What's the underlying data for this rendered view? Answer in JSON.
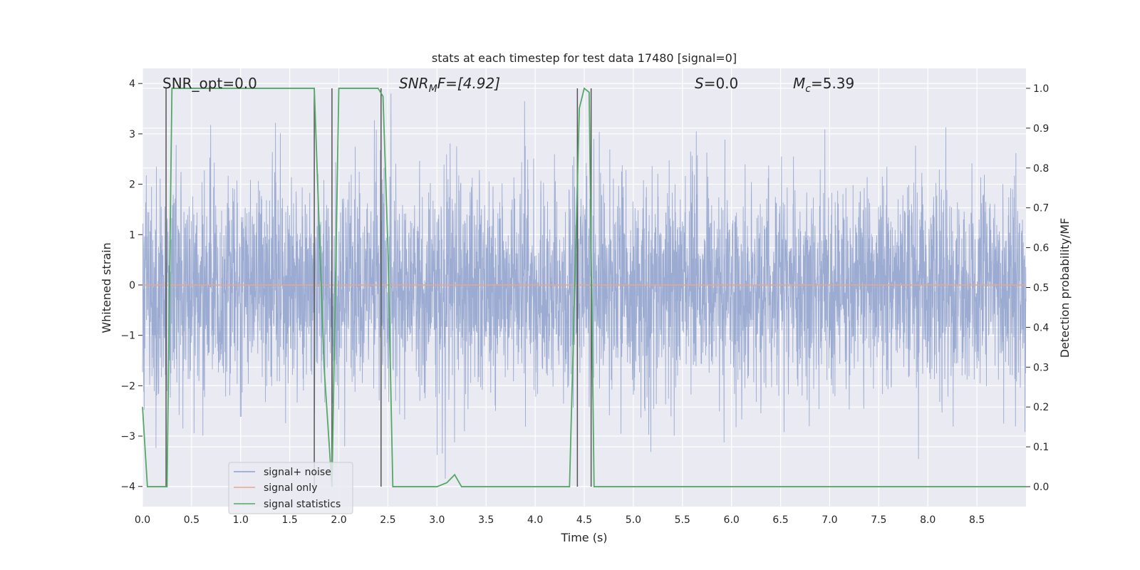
{
  "chart_data": {
    "type": "line",
    "title": "stats at each timestep for test data 17480 [signal=0]",
    "xlabel": "Time (s)",
    "ylabel": "Whitened strain",
    "ylabel_right": "Detection probability/MF",
    "xlim": [
      0.0,
      9.0
    ],
    "ylim": [
      -4.4,
      4.3
    ],
    "ylim_right": [
      -0.05,
      1.05
    ],
    "xticks": [
      "0.0",
      "0.5",
      "1.0",
      "1.5",
      "2.0",
      "2.5",
      "3.0",
      "3.5",
      "4.0",
      "4.5",
      "5.0",
      "5.5",
      "6.0",
      "6.5",
      "7.0",
      "7.5",
      "8.0",
      "8.5"
    ],
    "yticks_left": [
      "4",
      "3",
      "2",
      "1",
      "0",
      "−1",
      "−2",
      "−3",
      "−4"
    ],
    "yticks_right": [
      "1.0",
      "0.9",
      "0.8",
      "0.7",
      "0.6",
      "0.5",
      "0.4",
      "0.3",
      "0.2",
      "0.1",
      "0.0"
    ],
    "grid": true,
    "legend_position": "lower-left",
    "annotations": {
      "snr_opt": "SNR_opt=0.0",
      "snr_mf_prefix": "SNR",
      "snr_mf_sub": "M",
      "snr_mf_suffix": "F=[4.92]",
      "s_italic": "S",
      "s_value": "=0.0",
      "mc_italic": "M",
      "mc_sub": "c",
      "mc_value": "=5.39"
    },
    "noise_envelope": {
      "typical_max": 2.3,
      "typical_min": -2.3,
      "peak_max": 3.8,
      "peak_min": -4.0
    },
    "series": [
      {
        "name": "signal+ noise",
        "color": "#8da0cb",
        "axis": "left",
        "description_values": "dense noise, approx. within [-4.0, 3.8]"
      },
      {
        "name": "signal only",
        "color": "#e5a88c",
        "axis": "left",
        "x": [
          0.0,
          9.0
        ],
        "y": [
          0.0,
          0.0
        ]
      },
      {
        "name": "signal statistics",
        "color": "#55a868",
        "axis": "right",
        "x": [
          0.0,
          0.05,
          0.25,
          0.3,
          1.75,
          1.85,
          1.93,
          2.0,
          2.4,
          2.45,
          2.5,
          2.55,
          2.6,
          3.0,
          3.1,
          3.18,
          3.25,
          4.35,
          4.45,
          4.5,
          4.55,
          4.6,
          4.65,
          5.0,
          9.0
        ],
        "y": [
          0.2,
          0.0,
          0.0,
          1.0,
          1.0,
          0.3,
          0.0,
          1.0,
          1.0,
          0.98,
          0.6,
          0.0,
          0.0,
          0.0,
          0.01,
          0.03,
          0.0,
          0.0,
          0.95,
          1.0,
          0.99,
          0.0,
          0.0,
          0.0,
          0.0
        ]
      }
    ],
    "vertical_markers": [
      0.24,
      1.75,
      1.93,
      2.43,
      4.43,
      4.57
    ]
  },
  "colors": {
    "plot_background": "#eaeaf2",
    "grid": "#ffffff",
    "marker_line": "#555555"
  }
}
